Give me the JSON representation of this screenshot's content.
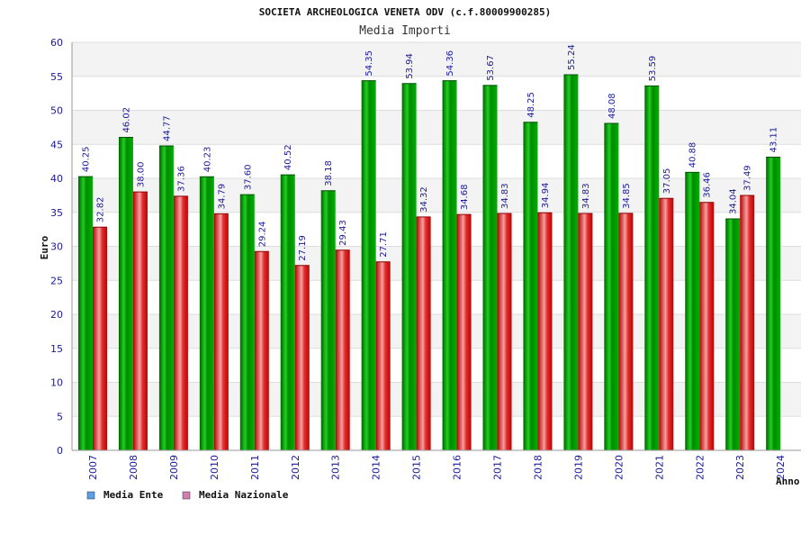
{
  "chart_data": {
    "type": "bar",
    "title": "SOCIETA ARCHEOLOGICA VENETA ODV (c.f.80009900285)",
    "subtitle": "Media Importi",
    "xlabel": "Anno",
    "ylabel": "Euro",
    "ylim": [
      0,
      60
    ],
    "yticks": [
      0,
      5,
      10,
      15,
      20,
      25,
      30,
      35,
      40,
      45,
      50,
      55,
      60
    ],
    "grid": true,
    "legend_position": "bottom-left",
    "categories": [
      "2007",
      "2008",
      "2009",
      "2010",
      "2011",
      "2012",
      "2013",
      "2014",
      "2015",
      "2016",
      "2017",
      "2018",
      "2019",
      "2020",
      "2021",
      "2022",
      "2023",
      "2024"
    ],
    "series": [
      {
        "name": "Media Ente",
        "color": "#00b000",
        "legend_color": "#5aa0e8",
        "values": [
          40.25,
          46.02,
          44.77,
          40.23,
          37.6,
          40.52,
          38.18,
          54.35,
          53.94,
          54.36,
          53.67,
          48.25,
          55.24,
          48.08,
          53.59,
          40.88,
          34.04,
          43.11
        ],
        "labels": [
          "40.25",
          "46.02",
          "44.77",
          "40.23",
          "37.60",
          "40.52",
          "38.18",
          "54.35",
          "53.94",
          "54.36",
          "53.67",
          "48.25",
          "55.24",
          "48.08",
          "53.59",
          "40.88",
          "34.04",
          "43.11"
        ]
      },
      {
        "name": "Media Nazionale",
        "color": "#e02020",
        "legend_color": "#d080b0",
        "values": [
          32.82,
          38.0,
          37.36,
          34.79,
          29.24,
          27.19,
          29.43,
          27.71,
          34.32,
          34.68,
          34.83,
          34.94,
          34.83,
          34.85,
          37.05,
          36.46,
          37.49,
          null
        ],
        "labels": [
          "32.82",
          "38.00",
          "37.36",
          "34.79",
          "29.24",
          "27.19",
          "29.43",
          "27.71",
          "34.32",
          "34.68",
          "34.83",
          "34.94",
          "34.83",
          "34.85",
          "37.05",
          "36.46",
          "37.49",
          ""
        ]
      }
    ]
  }
}
